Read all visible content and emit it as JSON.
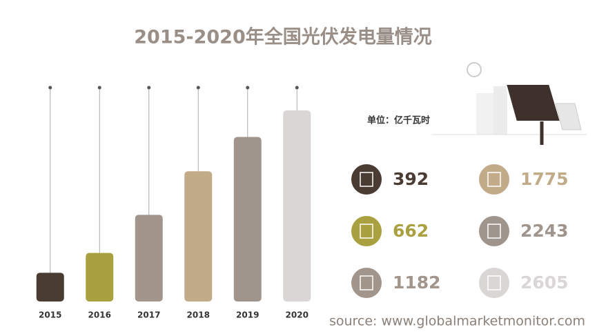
{
  "chart_data": {
    "type": "bar",
    "title": "2015-2020年全国光伏发电量情况",
    "categories": [
      "2015",
      "2016",
      "2017",
      "2018",
      "2019",
      "2020"
    ],
    "values": [
      392,
      662,
      1182,
      1775,
      2243,
      2605
    ],
    "colors": [
      "#4a3c33",
      "#a9a040",
      "#a1958c",
      "#c1ab88",
      "#9f958d",
      "#dad6d6"
    ],
    "unit": "单位：亿千瓦时",
    "source": "source: www.globalmarketmonitor.com"
  }
}
